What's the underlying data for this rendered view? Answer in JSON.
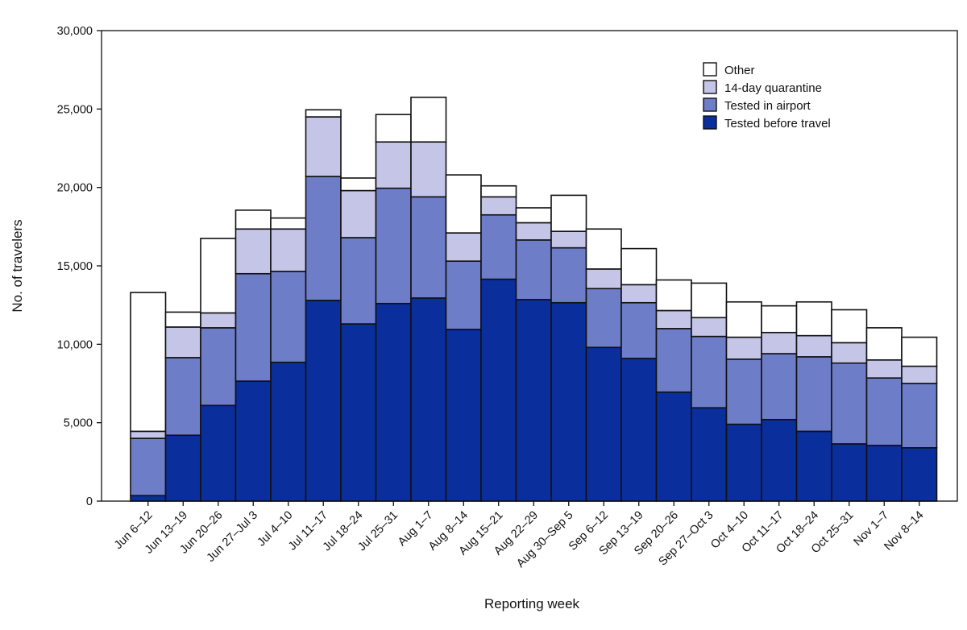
{
  "chart_data": {
    "type": "bar",
    "stacked": true,
    "title": "",
    "xlabel": "Reporting week",
    "ylabel": "No. of travelers",
    "ylim": [
      0,
      30000
    ],
    "yticks": [
      0,
      5000,
      10000,
      15000,
      20000,
      25000,
      30000
    ],
    "ytick_labels": [
      "0",
      "5,000",
      "10,000",
      "15,000",
      "20,000",
      "25,000",
      "30,000"
    ],
    "grid": false,
    "legend_position": "top-right",
    "categories": [
      "Jun 6–12",
      "Jun 13–19",
      "Jun 20–26",
      "Jun 27–Jul 3",
      "Jul 4–10",
      "Jul 11–17",
      "Jul 18–24",
      "Jul 25–31",
      "Aug 1–7",
      "Aug 8–14",
      "Aug 15–21",
      "Aug 22–29",
      "Aug 30–Sep 5",
      "Sep 6–12",
      "Sep 13–19",
      "Sep 20–26",
      "Sep 27–Oct 3",
      "Oct 4–10",
      "Oct 11–17",
      "Oct 18–24",
      "Oct 25–31",
      "Nov 1–7",
      "Nov 8–14"
    ],
    "series": [
      {
        "name": "Tested before travel",
        "color": "#0a2e9c",
        "values": [
          350,
          4200,
          6100,
          7650,
          8850,
          12800,
          11300,
          12600,
          12950,
          10950,
          14150,
          12850,
          12650,
          9800,
          9100,
          6950,
          5950,
          4900,
          5200,
          4450,
          3650,
          3550,
          3400
        ]
      },
      {
        "name": "Tested in airport",
        "color": "#6e7dc8",
        "values": [
          3650,
          4950,
          4950,
          6850,
          5800,
          7900,
          5500,
          7350,
          6450,
          4350,
          4100,
          3800,
          3500,
          3750,
          3550,
          4050,
          4550,
          4150,
          4200,
          4750,
          5150,
          4300,
          4100
        ]
      },
      {
        "name": "14-day quarantine",
        "color": "#c4c5e7",
        "values": [
          450,
          1950,
          950,
          2850,
          2700,
          3800,
          3000,
          2950,
          3500,
          1800,
          1150,
          1100,
          1050,
          1250,
          1150,
          1150,
          1200,
          1400,
          1350,
          1350,
          1300,
          1150,
          1100
        ]
      },
      {
        "name": "Other",
        "color": "#ffffff",
        "values": [
          8850,
          950,
          4750,
          1200,
          700,
          450,
          800,
          1750,
          2850,
          3700,
          700,
          950,
          2300,
          2550,
          2300,
          1950,
          2200,
          2250,
          1700,
          2150,
          2100,
          2050,
          1850
        ]
      }
    ],
    "legend_order": [
      "Other",
      "14-day quarantine",
      "Tested in airport",
      "Tested before travel"
    ]
  }
}
